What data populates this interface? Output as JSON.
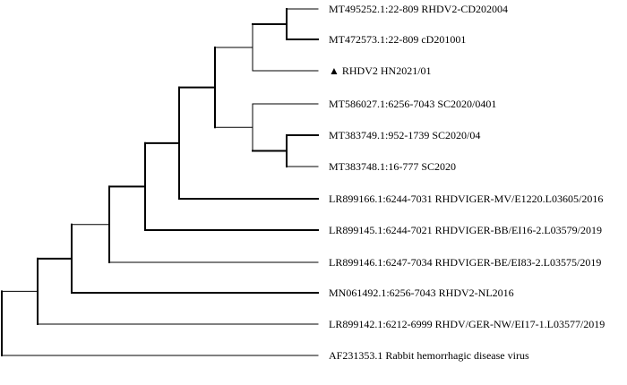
{
  "tree": {
    "leaves": [
      {
        "id": "L1",
        "label": "MT495252.1:22-809 RHDV2-CD202004"
      },
      {
        "id": "L2",
        "label": "MT472573.1:22-809 cD201001"
      },
      {
        "id": "L3",
        "label": "▲ RHDV2 HN2021/01"
      },
      {
        "id": "L4",
        "label": "MT586027.1:6256-7043 SC2020/0401"
      },
      {
        "id": "L5",
        "label": "MT383749.1:952-1739 SC2020/04"
      },
      {
        "id": "L6",
        "label": "MT383748.1:16-777 SC2020"
      },
      {
        "id": "L7",
        "label": "LR899166.1:6244-7031 RHDVIGER-MV/E1220.L03605/2016"
      },
      {
        "id": "L8",
        "label": "LR899145.1:6244-7021 RHDVIGER-BB/EI16-2.L03579/2019"
      },
      {
        "id": "L9",
        "label": "LR899146.1:6247-7034 RHDVIGER-BE/EI83-2.L03575/2019"
      },
      {
        "id": "L10",
        "label": "MN061492.1:6256-7043 RHDV2-NL2016"
      },
      {
        "id": "L11",
        "label": "LR899142.1:6212-6999 RHDV/GER-NW/EI17-1.L03577/2019"
      },
      {
        "id": "L12",
        "label": "AF231353.1 Rabbit hemorrhagic disease virus"
      }
    ]
  }
}
